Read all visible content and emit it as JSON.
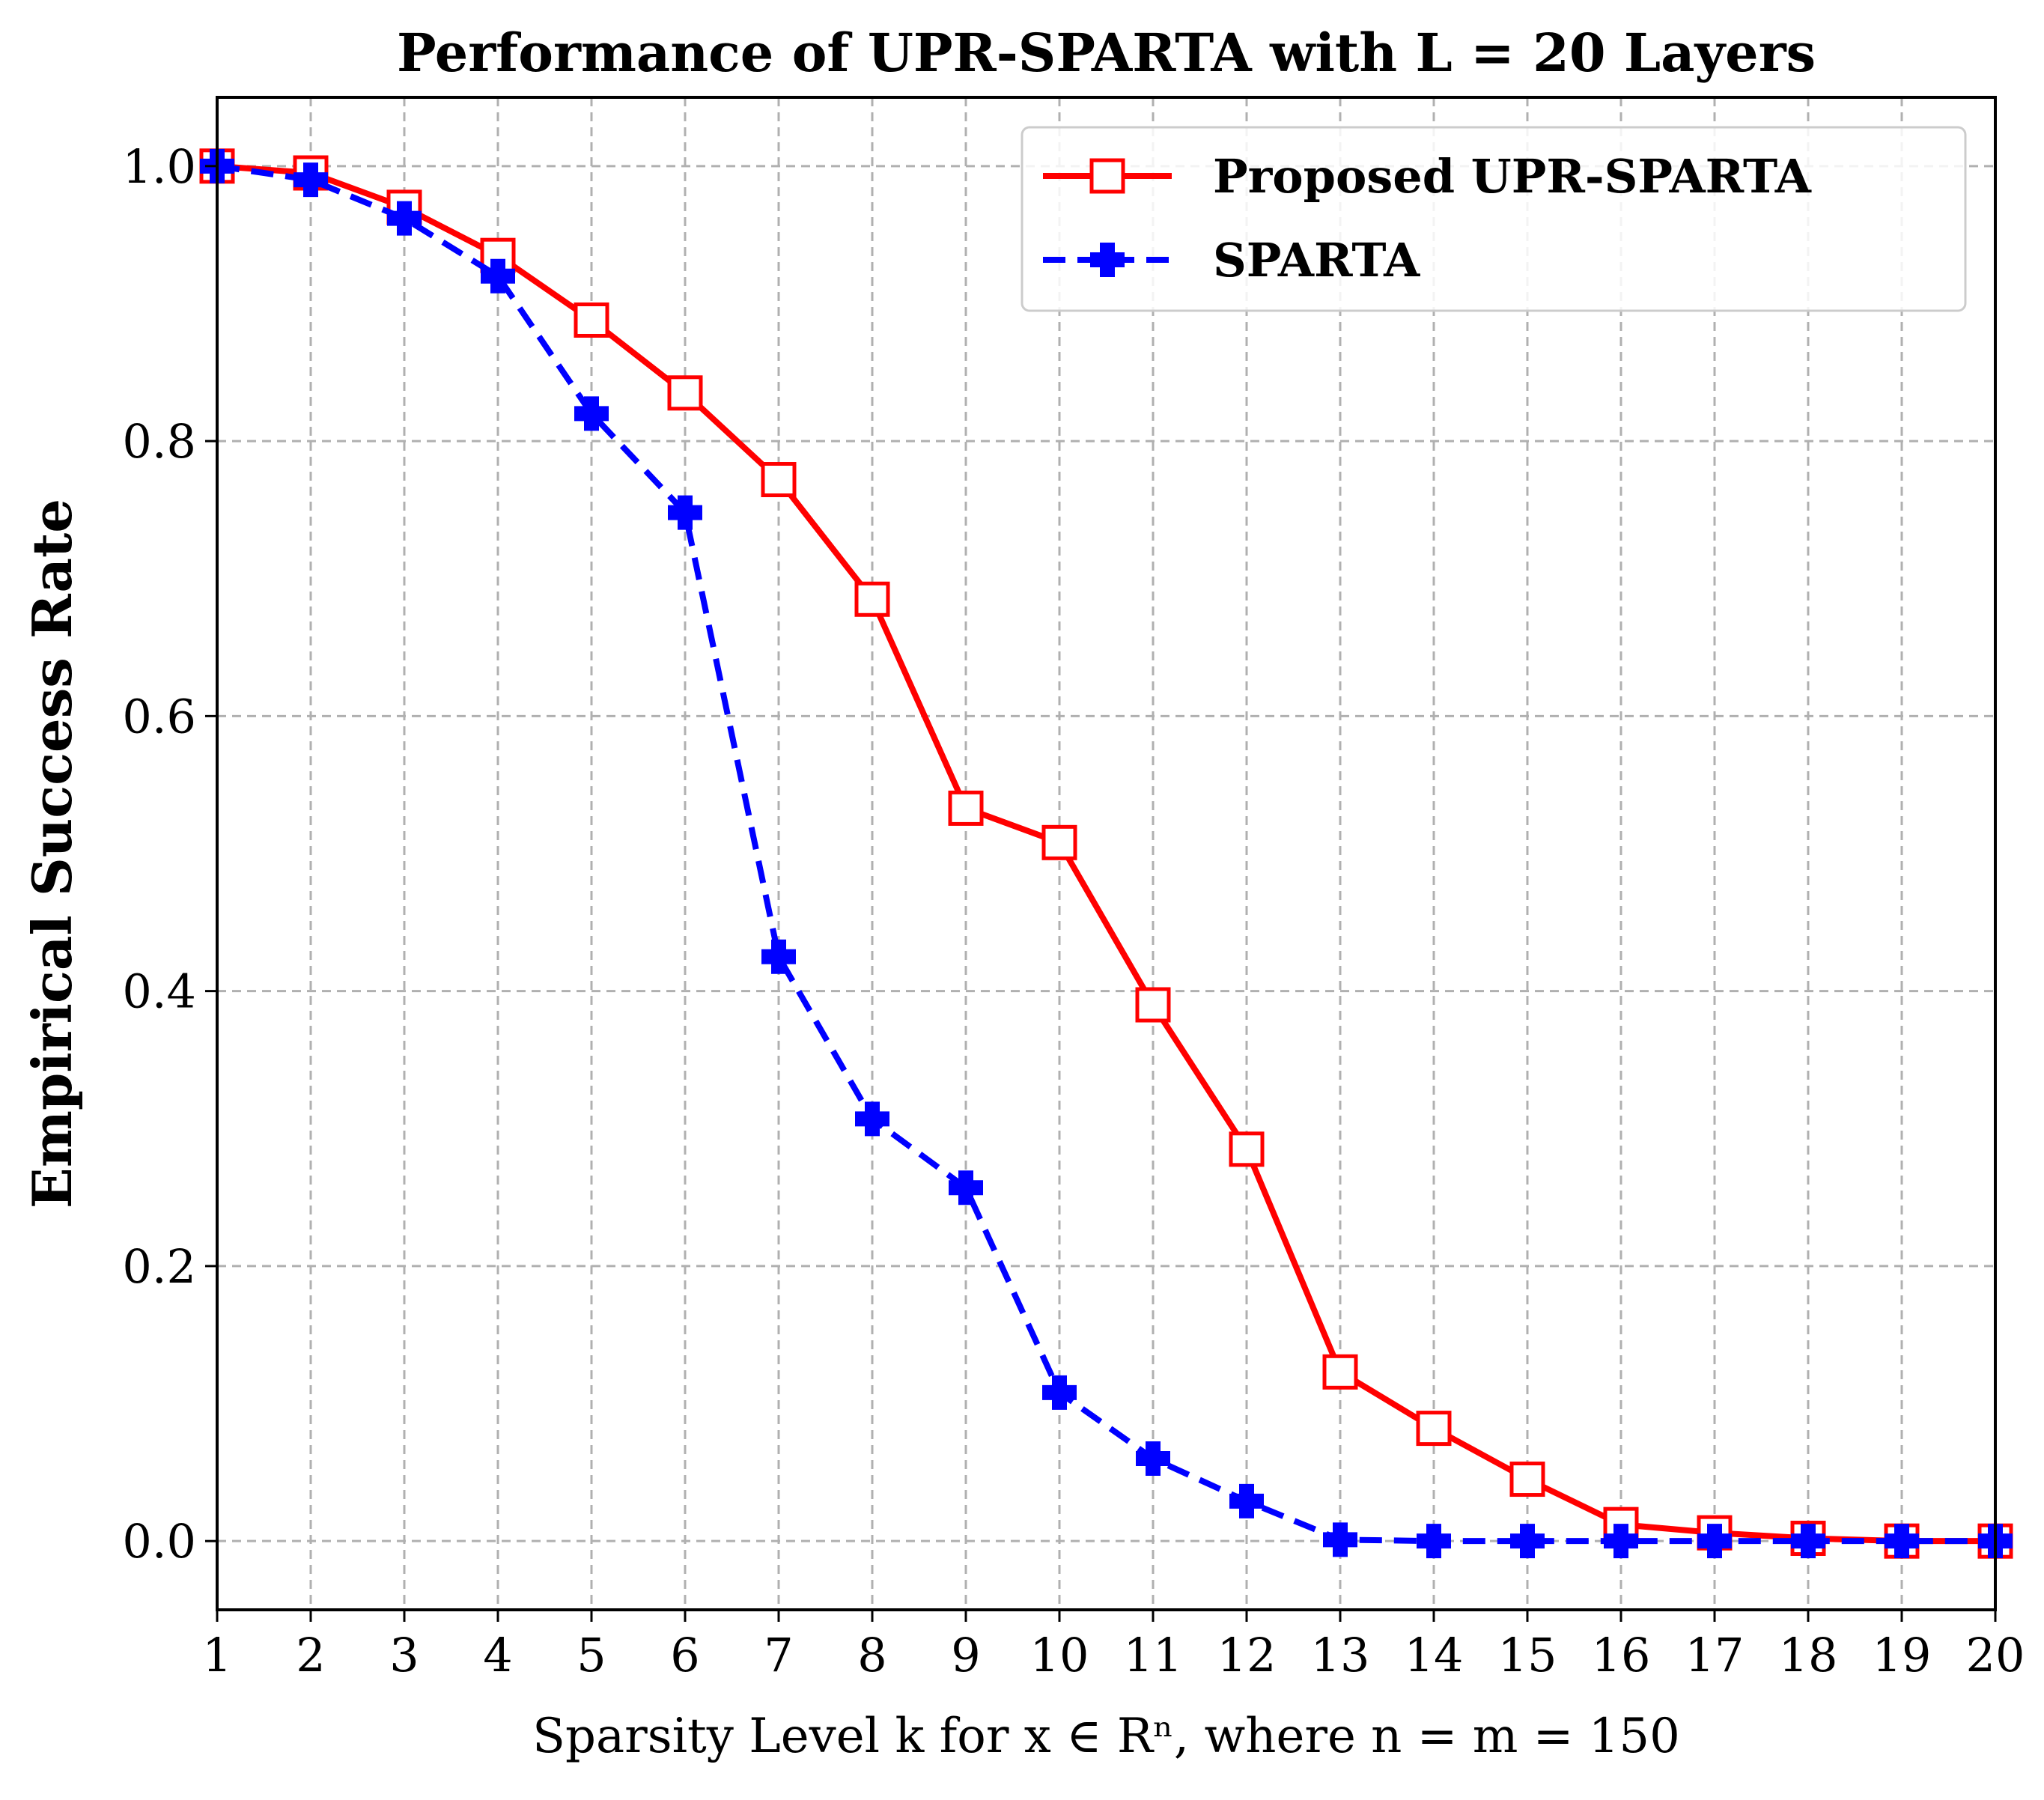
{
  "chart_data": {
    "type": "line",
    "title": "Performance of UPR-SPARTA with L = 20 Layers",
    "xlabel": "Sparsity Level k for x ∈ Rⁿ, where n = m = 150",
    "ylabel": "Empirical Success Rate",
    "x": [
      1,
      2,
      3,
      4,
      5,
      6,
      7,
      8,
      9,
      10,
      11,
      12,
      13,
      14,
      15,
      16,
      17,
      18,
      19,
      20
    ],
    "xlim": [
      1,
      20
    ],
    "ylim": [
      -0.05,
      1.05
    ],
    "xticks": [
      "1",
      "2",
      "3",
      "4",
      "5",
      "6",
      "7",
      "8",
      "9",
      "10",
      "11",
      "12",
      "13",
      "14",
      "15",
      "16",
      "17",
      "18",
      "19",
      "20"
    ],
    "yticks": [
      {
        "value": 0.0,
        "label": "0.0"
      },
      {
        "value": 0.2,
        "label": "0.2"
      },
      {
        "value": 0.4,
        "label": "0.4"
      },
      {
        "value": 0.6,
        "label": "0.6"
      },
      {
        "value": 0.8,
        "label": "0.8"
      },
      {
        "value": 1.0,
        "label": "1.0"
      }
    ],
    "grid": true,
    "legend_position": "top-right",
    "series": [
      {
        "name": "Proposed UPR-SPARTA",
        "color": "#ff0000",
        "line_style": "solid",
        "marker": "open-square",
        "values": [
          1.0,
          0.995,
          0.97,
          0.935,
          0.888,
          0.835,
          0.772,
          0.685,
          0.533,
          0.508,
          0.39,
          0.285,
          0.123,
          0.082,
          0.045,
          0.012,
          0.006,
          0.002,
          0.0,
          0.0
        ]
      },
      {
        "name": "SPARTA",
        "color": "#0000ff",
        "line_style": "dashed",
        "marker": "filled-plus",
        "values": [
          1.0,
          0.99,
          0.962,
          0.92,
          0.82,
          0.748,
          0.425,
          0.307,
          0.257,
          0.108,
          0.06,
          0.029,
          0.001,
          0.0,
          0.0,
          0.0,
          0.0,
          0.0,
          0.0,
          0.0
        ]
      }
    ]
  }
}
